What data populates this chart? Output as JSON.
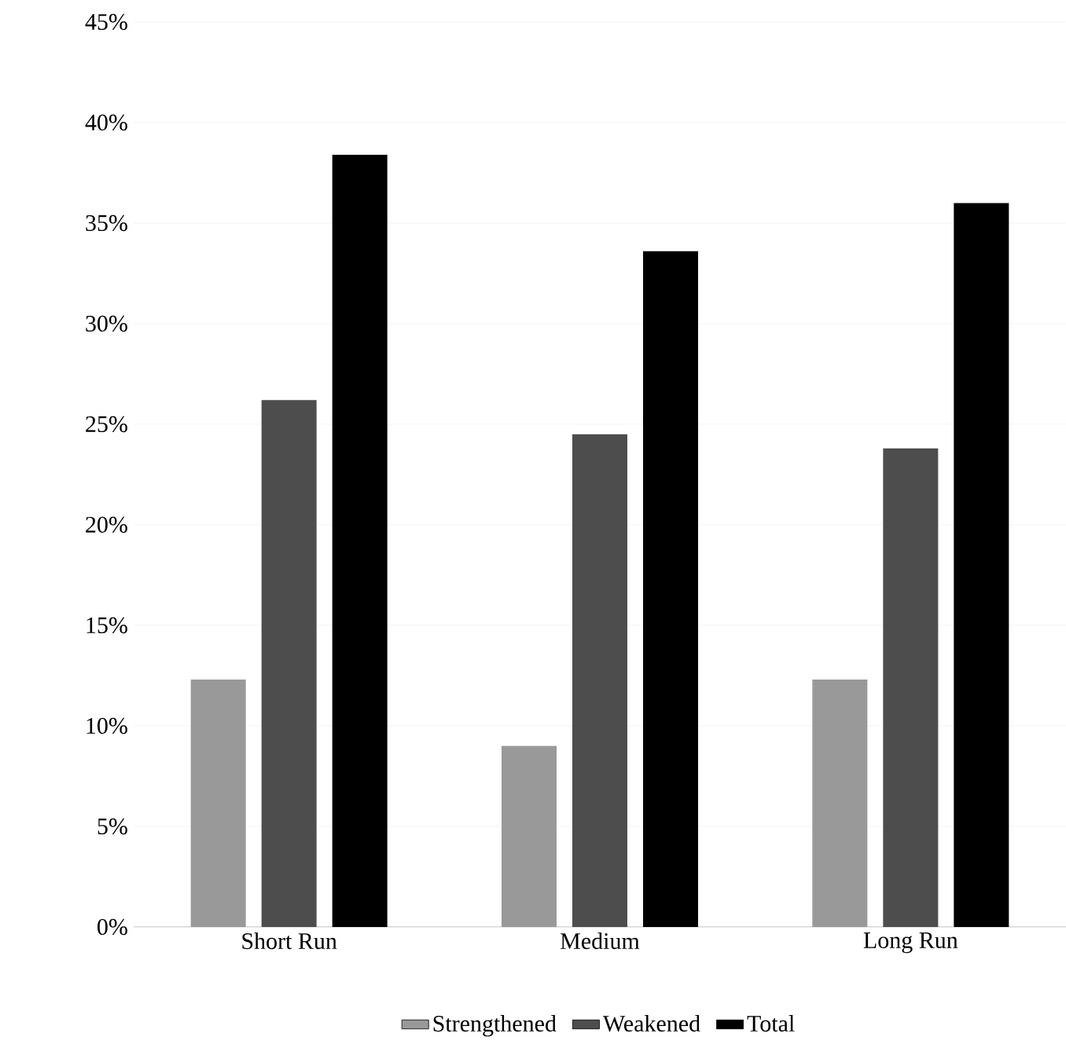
{
  "chart_data": {
    "type": "bar",
    "categories": [
      "Short Run",
      "Medium",
      "Long Run"
    ],
    "series": [
      {
        "name": "Strengthened",
        "color": "#999999",
        "values": [
          12.3,
          9.0,
          12.3
        ]
      },
      {
        "name": "Weakened",
        "color": "#4d4d4d",
        "values": [
          26.2,
          24.5,
          23.8
        ]
      },
      {
        "name": "Total",
        "color": "#000000",
        "values": [
          38.4,
          33.6,
          36.0
        ]
      }
    ],
    "ylim": [
      0,
      45
    ],
    "yticks": [
      {
        "value": 0,
        "label": "0%"
      },
      {
        "value": 5,
        "label": "5%"
      },
      {
        "value": 10,
        "label": "10%"
      },
      {
        "value": 15,
        "label": "15%"
      },
      {
        "value": 20,
        "label": "20%"
      },
      {
        "value": 25,
        "label": "25%"
      },
      {
        "value": 30,
        "label": "30%"
      },
      {
        "value": 35,
        "label": "35%"
      },
      {
        "value": 40,
        "label": "40%"
      },
      {
        "value": 45,
        "label": "45%"
      }
    ],
    "grid": "y",
    "legend": "bottom"
  }
}
